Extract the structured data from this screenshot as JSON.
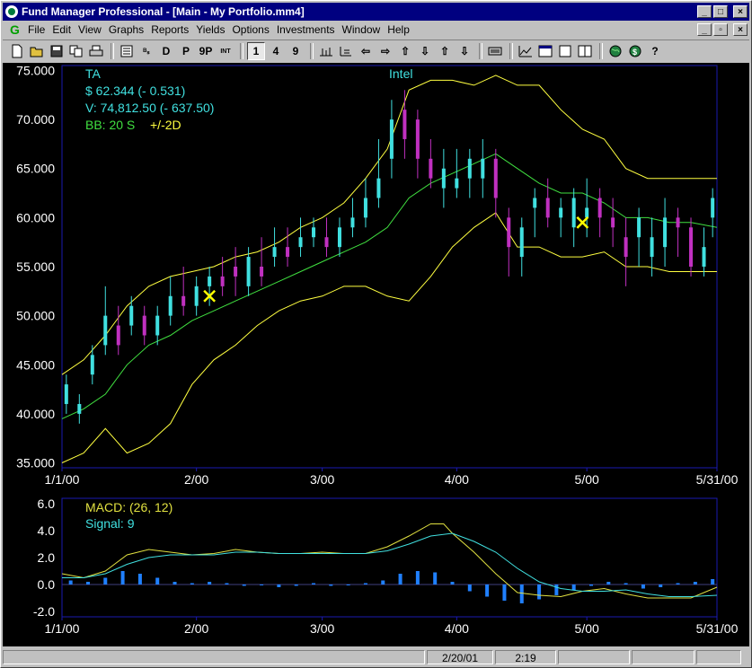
{
  "window": {
    "title": "Fund Manager Professional - [Main - My Portfolio.mm4]",
    "btn_min": "_",
    "btn_max": "□",
    "btn_close": "×",
    "mdi_min": "_",
    "mdi_restore": "▫",
    "mdi_close": "×"
  },
  "menu": {
    "logo": "G",
    "items": [
      "File",
      "Edit",
      "View",
      "Graphs",
      "Reports",
      "Yields",
      "Options",
      "Investments",
      "Window",
      "Help"
    ]
  },
  "toolbar": {
    "letters": [
      "D",
      "P",
      "9P",
      "INT"
    ],
    "periods": [
      "1",
      "4",
      "9"
    ]
  },
  "status": {
    "date": "2/20/01",
    "time": "2:19"
  },
  "chart_data": [
    {
      "type": "line",
      "title": "Intel",
      "legend": [
        {
          "text": "TA",
          "color": "#40e0e0"
        },
        {
          "text": "$ 62.344 (- 0.531)",
          "color": "#40e0e0"
        },
        {
          "text": "V: 74,812.50 (- 637.50)",
          "color": "#40e0e0"
        },
        {
          "text": "BB: 20 S",
          "color": "#40e040"
        },
        {
          "text": "+/-2D",
          "color": "#ffff40"
        }
      ],
      "x_tick_labels": [
        "1/1/00",
        "2/00",
        "3/00",
        "4/00",
        "5/00",
        "5/31/00"
      ],
      "x_ticks_day": [
        0,
        31,
        60,
        91,
        121,
        151
      ],
      "x_range_day": [
        0,
        151
      ],
      "y_tick_labels": [
        "75.000",
        "70.000",
        "65.000",
        "60.000",
        "55.000",
        "50.000",
        "45.000",
        "40.000",
        "35.000"
      ],
      "ylim": [
        34.5,
        75.5
      ],
      "colors": {
        "upper": "#ffff40",
        "middle": "#40e040",
        "lower": "#ffff40",
        "up_candle": "#40e0e0",
        "down_candle": "#c030c0",
        "marker": "#ffff00"
      },
      "series": [
        {
          "name": "BB upper",
          "x_day": [
            0,
            5,
            10,
            15,
            20,
            25,
            30,
            35,
            40,
            45,
            50,
            55,
            60,
            65,
            70,
            75,
            80,
            85,
            90,
            95,
            100,
            105,
            110,
            115,
            120,
            125,
            130,
            135,
            140,
            145,
            151
          ],
          "y": [
            44,
            45.5,
            48,
            51,
            53,
            54,
            54.5,
            55,
            56,
            56.5,
            57.5,
            59,
            60,
            61.5,
            64,
            67,
            73,
            74,
            74,
            73.5,
            74.5,
            73.5,
            73.5,
            71,
            69,
            68,
            65,
            64,
            64,
            64,
            64
          ]
        },
        {
          "name": "BB middle",
          "x_day": [
            0,
            5,
            10,
            15,
            20,
            25,
            30,
            35,
            40,
            45,
            50,
            55,
            60,
            65,
            70,
            75,
            80,
            85,
            90,
            95,
            100,
            105,
            110,
            115,
            120,
            125,
            130,
            135,
            140,
            145,
            151
          ],
          "y": [
            39.5,
            40.5,
            42,
            45,
            47,
            48,
            49.5,
            50.5,
            51.5,
            52.5,
            53.5,
            54.5,
            55.5,
            56.5,
            57.5,
            59,
            62,
            63.5,
            64.5,
            65.5,
            66.5,
            65,
            63.5,
            62.5,
            62.5,
            61.5,
            60,
            60,
            59.5,
            59.5,
            59
          ]
        },
        {
          "name": "BB lower",
          "x_day": [
            0,
            5,
            10,
            15,
            20,
            25,
            30,
            35,
            40,
            45,
            50,
            55,
            60,
            65,
            70,
            75,
            80,
            85,
            90,
            95,
            100,
            105,
            110,
            115,
            120,
            125,
            130,
            135,
            140,
            145,
            151
          ],
          "y": [
            35,
            36,
            38.5,
            36,
            37,
            39,
            43,
            45.5,
            47,
            49,
            50.5,
            51.5,
            52,
            53,
            53,
            52,
            51.5,
            54,
            57,
            59,
            60.5,
            57,
            57,
            56,
            56,
            56.5,
            55,
            55,
            54.5,
            54.5,
            54.5
          ]
        },
        {
          "name": "candles",
          "x_day": [
            1,
            4,
            7,
            10,
            13,
            16,
            19,
            22,
            25,
            28,
            31,
            34,
            37,
            40,
            43,
            46,
            49,
            52,
            55,
            58,
            61,
            64,
            67,
            70,
            73,
            76,
            79,
            82,
            85,
            88,
            91,
            94,
            97,
            100,
            103,
            106,
            109,
            112,
            115,
            118,
            121,
            124,
            127,
            130,
            133,
            136,
            139,
            142,
            145,
            148,
            150
          ],
          "open": [
            41,
            40,
            44,
            47,
            49,
            49,
            50,
            48,
            50,
            52,
            51,
            53,
            54,
            55,
            53,
            55,
            56,
            57,
            57,
            58,
            58,
            57,
            59,
            60,
            62,
            66,
            71,
            70,
            66,
            63,
            63,
            64,
            64,
            66,
            60,
            56,
            61,
            62,
            60,
            59,
            60,
            62,
            60,
            58,
            58,
            56,
            57,
            60,
            59,
            55,
            60
          ],
          "close": [
            43,
            41,
            46,
            50,
            47,
            51,
            48,
            50,
            52,
            51,
            53,
            54,
            53,
            54,
            56,
            54,
            57,
            56,
            58,
            59,
            57,
            59,
            60,
            62,
            64,
            70,
            68,
            66,
            64,
            65,
            64,
            66,
            66,
            62,
            57,
            59,
            62,
            60,
            61,
            62,
            61,
            60,
            59,
            56,
            60,
            58,
            60,
            59,
            55,
            57,
            62
          ],
          "high": [
            44,
            42,
            47,
            53,
            51,
            52,
            51,
            51,
            54,
            55,
            54,
            55,
            56,
            57,
            57,
            58,
            59,
            59,
            60,
            60,
            60,
            60,
            62,
            64,
            68,
            72,
            73,
            71,
            68,
            67,
            67,
            67,
            68,
            67,
            61,
            60,
            63,
            64,
            62,
            63,
            64,
            63,
            62,
            60,
            61,
            60,
            62,
            61,
            60,
            59,
            63
          ],
          "low": [
            40,
            39,
            43,
            46,
            46,
            48,
            47,
            47,
            49,
            50,
            50,
            51,
            52,
            52,
            52,
            53,
            55,
            55,
            56,
            57,
            56,
            56,
            58,
            59,
            61,
            64,
            66,
            64,
            63,
            61,
            62,
            62,
            62,
            60,
            54,
            54,
            58,
            59,
            58,
            57,
            58,
            58,
            57,
            53,
            55,
            54,
            55,
            56,
            54,
            54,
            58
          ]
        },
        {
          "name": "markers",
          "x_day": [
            34,
            120
          ],
          "y": [
            52,
            59.5
          ]
        }
      ]
    },
    {
      "type": "line",
      "legend": [
        {
          "text": "MACD: (26, 12)",
          "color": "#e0e040"
        },
        {
          "text": "Signal: 9",
          "color": "#40e0e0"
        }
      ],
      "x_tick_labels": [
        "1/1/00",
        "2/00",
        "3/00",
        "4/00",
        "5/00",
        "5/31/00"
      ],
      "x_ticks_day": [
        0,
        31,
        60,
        91,
        121,
        151
      ],
      "x_range_day": [
        0,
        151
      ],
      "y_tick_labels": [
        "6.0",
        "4.0",
        "2.0",
        "0.0",
        "-2.0"
      ],
      "ylim": [
        -2.4,
        6.4
      ],
      "colors": {
        "macd": "#e0e040",
        "signal": "#40e0e0",
        "hist": "#2080ff"
      },
      "series": [
        {
          "name": "MACD",
          "x_day": [
            0,
            5,
            10,
            15,
            20,
            25,
            30,
            35,
            40,
            45,
            50,
            55,
            60,
            65,
            70,
            75,
            80,
            85,
            88,
            90,
            95,
            100,
            105,
            110,
            115,
            120,
            125,
            130,
            135,
            140,
            145,
            151
          ],
          "y": [
            0.8,
            0.5,
            1.0,
            2.2,
            2.6,
            2.4,
            2.2,
            2.3,
            2.6,
            2.4,
            2.3,
            2.3,
            2.4,
            2.3,
            2.3,
            2.8,
            3.6,
            4.5,
            4.5,
            3.8,
            2.4,
            0.8,
            -0.6,
            -0.8,
            -0.9,
            -0.5,
            -0.3,
            -0.7,
            -1.0,
            -1.0,
            -1.0,
            -0.2
          ]
        },
        {
          "name": "Signal",
          "x_day": [
            0,
            5,
            10,
            15,
            20,
            25,
            30,
            35,
            40,
            45,
            50,
            55,
            60,
            65,
            70,
            75,
            80,
            85,
            90,
            95,
            100,
            105,
            110,
            115,
            120,
            125,
            130,
            135,
            140,
            145,
            151
          ],
          "y": [
            0.5,
            0.5,
            0.8,
            1.5,
            2.0,
            2.2,
            2.2,
            2.2,
            2.4,
            2.4,
            2.3,
            2.3,
            2.3,
            2.3,
            2.3,
            2.5,
            3.0,
            3.6,
            3.8,
            3.2,
            2.4,
            1.2,
            0.2,
            -0.3,
            -0.5,
            -0.5,
            -0.4,
            -0.7,
            -0.9,
            -0.9,
            -0.8
          ]
        },
        {
          "name": "Histogram",
          "x_day": [
            2,
            6,
            10,
            14,
            18,
            22,
            26,
            30,
            34,
            38,
            42,
            46,
            50,
            54,
            58,
            62,
            66,
            70,
            74,
            78,
            82,
            86,
            90,
            94,
            98,
            102,
            106,
            110,
            114,
            118,
            122,
            126,
            130,
            134,
            138,
            142,
            146,
            150
          ],
          "y": [
            0.3,
            0.2,
            0.5,
            1.0,
            0.8,
            0.5,
            0.2,
            0.1,
            0.2,
            0.1,
            -0.1,
            0.0,
            -0.2,
            -0.1,
            0.1,
            -0.1,
            0.0,
            0.1,
            0.3,
            0.8,
            1.0,
            0.9,
            0.2,
            -0.5,
            -0.9,
            -1.2,
            -1.4,
            -1.1,
            -0.8,
            -0.4,
            -0.1,
            0.2,
            0.1,
            -0.3,
            -0.2,
            0.1,
            0.2,
            0.4
          ]
        }
      ]
    }
  ]
}
